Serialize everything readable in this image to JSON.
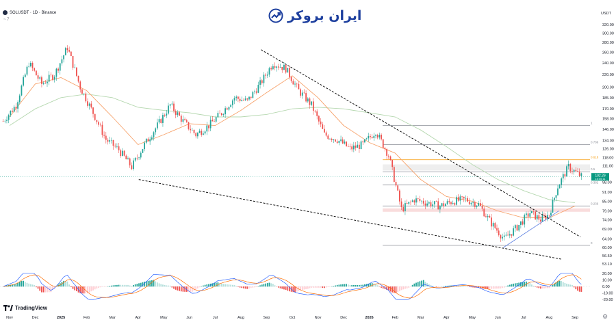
{
  "header": {
    "symbol_line": "SOLUSDT · 1D · Binance",
    "indicator_line": "~ 7"
  },
  "brand": {
    "name": "ایران بروکر"
  },
  "footer": {
    "logo_text": "TradingView"
  },
  "colors": {
    "up": "#26a69a",
    "down": "#ef5350",
    "ema_fast": "#f7a26b",
    "ema_slow": "#b6d8b0",
    "fib_gray": "#8a8d96",
    "fib_orange": "#f7a21b",
    "trendline": "#111111",
    "support": "#5b7fe0",
    "price_tag": "#089981",
    "macd_line": "#2962ff",
    "signal_line": "#ff6d00"
  },
  "chart_data": {
    "type": "candlestick",
    "symbol": "SOLUSDT",
    "interval": "1D",
    "exchange": "Binance",
    "y_scale": "log",
    "y_unit": "USDT",
    "ylim": [
      52,
      330
    ],
    "y_ticks": [
      53.1,
      56.5,
      60.0,
      64.0,
      69.0,
      74.0,
      79.0,
      85.0,
      91.0,
      98.0,
      111.0,
      118.0,
      126.0,
      134.0,
      146.0,
      158.0,
      170.0,
      185.0,
      200.0,
      220.0,
      240.0,
      260.0,
      280.0,
      300.0,
      320.0
    ],
    "y_tick_labels": [
      "53.10",
      "56.50",
      "60.00",
      "64.00",
      "69.00",
      "74.00",
      "79.00",
      "85.00",
      "91.00",
      "98.00",
      "111.00",
      "118.00",
      "126.00",
      "134.00",
      "146.00",
      "158.00",
      "170.00",
      "185.00",
      "200.00",
      "220.00",
      "240.00",
      "260.00",
      "280.00",
      "300.00",
      "320.00"
    ],
    "x_labels": [
      "Nov",
      "Dec",
      "2025",
      "Feb",
      "Mar",
      "Apr",
      "May",
      "Jun",
      "Jul",
      "Aug",
      "Sep",
      "Oct",
      "Nov",
      "Dec",
      "2026",
      "Feb",
      "Mar",
      "Apr",
      "May",
      "Jun",
      "Jul",
      "Aug",
      "Sep"
    ],
    "price_path": [
      {
        "x": "Nov",
        "y": 155
      },
      {
        "x": "Nov",
        "y": 175
      },
      {
        "x": "Dec",
        "y": 240
      },
      {
        "x": "Dec",
        "y": 205
      },
      {
        "x": "2025",
        "y": 220
      },
      {
        "x": "2025",
        "y": 270
      },
      {
        "x": "Feb",
        "y": 200
      },
      {
        "x": "Feb",
        "y": 165
      },
      {
        "x": "Mar",
        "y": 135
      },
      {
        "x": "Mar",
        "y": 125
      },
      {
        "x": "Apr",
        "y": 110
      },
      {
        "x": "Apr",
        "y": 130
      },
      {
        "x": "May",
        "y": 150
      },
      {
        "x": "May",
        "y": 175
      },
      {
        "x": "Jun",
        "y": 155
      },
      {
        "x": "Jun",
        "y": 140
      },
      {
        "x": "Jul",
        "y": 150
      },
      {
        "x": "Jul",
        "y": 165
      },
      {
        "x": "Aug",
        "y": 185
      },
      {
        "x": "Aug",
        "y": 180
      },
      {
        "x": "Sep",
        "y": 205
      },
      {
        "x": "Sep",
        "y": 240
      },
      {
        "x": "Oct",
        "y": 230
      },
      {
        "x": "Oct",
        "y": 195
      },
      {
        "x": "Nov",
        "y": 175
      },
      {
        "x": "Nov",
        "y": 140
      },
      {
        "x": "Dec",
        "y": 135
      },
      {
        "x": "Dec",
        "y": 126
      },
      {
        "x": "2026",
        "y": 130
      },
      {
        "x": "2026",
        "y": 144
      },
      {
        "x": "Feb",
        "y": 120
      },
      {
        "x": "Feb",
        "y": 80
      },
      {
        "x": "Mar",
        "y": 86
      },
      {
        "x": "Mar",
        "y": 84
      },
      {
        "x": "Apr",
        "y": 82
      },
      {
        "x": "Apr",
        "y": 85
      },
      {
        "x": "May",
        "y": 86
      },
      {
        "x": "May",
        "y": 83
      },
      {
        "x": "Jun",
        "y": 72
      },
      {
        "x": "Jun",
        "y": 64
      },
      {
        "x": "Jul",
        "y": 70
      },
      {
        "x": "Jul",
        "y": 78
      },
      {
        "x": "Aug",
        "y": 74
      },
      {
        "x": "Aug",
        "y": 77
      },
      {
        "x": "Aug",
        "y": 95
      },
      {
        "x": "Sep",
        "y": 110
      },
      {
        "x": "Sep",
        "y": 102.29
      }
    ],
    "ema_fast": [
      {
        "x": "Nov",
        "y": 160
      },
      {
        "x": "Dec",
        "y": 205
      },
      {
        "x": "2025",
        "y": 215
      },
      {
        "x": "Feb",
        "y": 195
      },
      {
        "x": "Mar",
        "y": 160
      },
      {
        "x": "Apr",
        "y": 130
      },
      {
        "x": "May",
        "y": 140
      },
      {
        "x": "Jun",
        "y": 152
      },
      {
        "x": "Jul",
        "y": 150
      },
      {
        "x": "Aug",
        "y": 168
      },
      {
        "x": "Sep",
        "y": 192
      },
      {
        "x": "Oct",
        "y": 218
      },
      {
        "x": "Nov",
        "y": 185
      },
      {
        "x": "Dec",
        "y": 150
      },
      {
        "x": "2026",
        "y": 132
      },
      {
        "x": "Feb",
        "y": 122
      },
      {
        "x": "Mar",
        "y": 100
      },
      {
        "x": "Apr",
        "y": 88
      },
      {
        "x": "May",
        "y": 85
      },
      {
        "x": "Jun",
        "y": 79
      },
      {
        "x": "Jul",
        "y": 75
      },
      {
        "x": "Aug",
        "y": 75
      },
      {
        "x": "Sep",
        "y": 82
      }
    ],
    "ema_slow": [
      {
        "x": "Nov",
        "y": 150
      },
      {
        "x": "Dec",
        "y": 170
      },
      {
        "x": "2025",
        "y": 185
      },
      {
        "x": "Feb",
        "y": 190
      },
      {
        "x": "Mar",
        "y": 185
      },
      {
        "x": "Apr",
        "y": 172
      },
      {
        "x": "May",
        "y": 168
      },
      {
        "x": "Jun",
        "y": 165
      },
      {
        "x": "Jul",
        "y": 160
      },
      {
        "x": "Aug",
        "y": 160
      },
      {
        "x": "Sep",
        "y": 163
      },
      {
        "x": "Oct",
        "y": 170
      },
      {
        "x": "Nov",
        "y": 172
      },
      {
        "x": "Dec",
        "y": 170
      },
      {
        "x": "2026",
        "y": 165
      },
      {
        "x": "Feb",
        "y": 160
      },
      {
        "x": "Mar",
        "y": 145
      },
      {
        "x": "Apr",
        "y": 128
      },
      {
        "x": "May",
        "y": 112
      },
      {
        "x": "Jun",
        "y": 100
      },
      {
        "x": "Jul",
        "y": 92
      },
      {
        "x": "Aug",
        "y": 86
      },
      {
        "x": "Sep",
        "y": 84
      }
    ],
    "fib_levels": [
      {
        "label": "1",
        "value": 150,
        "color": "#8a8d96"
      },
      {
        "label": "0.786",
        "value": 130,
        "color": "#8a8d96"
      },
      {
        "label": "0.618",
        "value": 116,
        "color": "#f7a21b"
      },
      {
        "label": "0.5",
        "value": 106,
        "color": "#8a8d96"
      },
      {
        "label": "0.382",
        "value": 96,
        "color": "#8a8d96"
      },
      {
        "label": "0.236",
        "value": 82,
        "color": "#8a8d96"
      },
      {
        "label": "0",
        "value": 61,
        "color": "#8a8d96"
      }
    ],
    "resistance_zone": [
      107,
      112
    ],
    "support_zone": [
      78.5,
      80.5
    ],
    "trendlines": [
      {
        "name": "upper",
        "from": {
          "x": "Sep",
          "y": 265
        },
        "to": {
          "x": "Sep",
          "y": 65
        }
      },
      {
        "name": "lower",
        "from": {
          "x": "Apr",
          "y": 100
        },
        "to": {
          "x": "Aug",
          "y": 55
        }
      },
      {
        "name": "support",
        "from": {
          "x": "Jun",
          "y": 60
        },
        "to": {
          "x": "Aug",
          "y": 79
        }
      }
    ],
    "last_price": {
      "value": 102.29,
      "label": "102.29",
      "countdown": "15:05:11"
    },
    "macd": {
      "y_ticks": [
        20.0,
        10.0,
        0.0,
        -10.0,
        -20.0
      ],
      "y_tick_labels": [
        "20.00",
        "10.00",
        "0.00",
        "-10.00",
        "-20.00"
      ],
      "ylim": [
        -22,
        24
      ]
    }
  }
}
